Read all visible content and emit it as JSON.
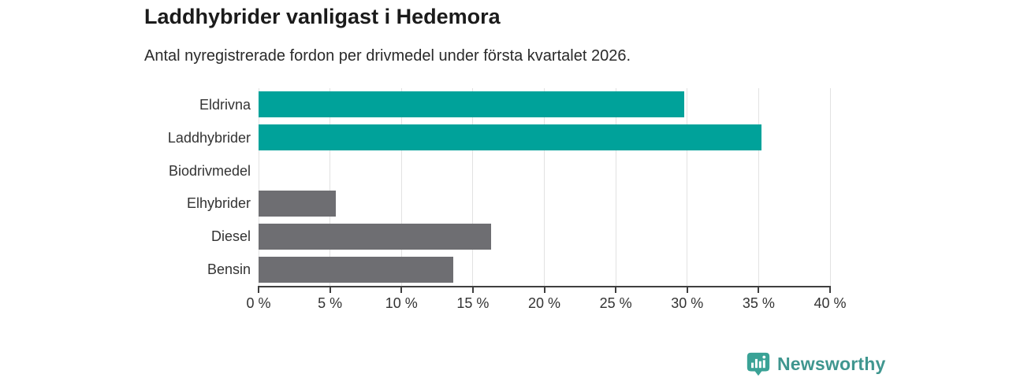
{
  "header": {
    "title": "Laddhybrider vanligast i Hedemora",
    "subtitle": "Antal nyregistrerade fordon per drivmedel under första kvartalet 2026."
  },
  "chart_data": {
    "type": "bar",
    "orientation": "horizontal",
    "title": "Laddhybrider vanligast i Hedemora",
    "subtitle": "Antal nyregistrerade fordon per drivmedel under första kvartalet 2026.",
    "categories": [
      "Eldrivna",
      "Laddhybrider",
      "Biodrivmedel",
      "Elhybrider",
      "Diesel",
      "Bensin"
    ],
    "values": [
      29.8,
      35.2,
      0,
      5.4,
      16.3,
      13.6
    ],
    "unit": "%",
    "xlabel": "",
    "ylabel": "",
    "xlim": [
      0,
      40
    ],
    "x_tick_values": [
      0,
      5,
      10,
      15,
      20,
      25,
      30,
      35,
      40
    ],
    "x_tick_labels": [
      "0 %",
      "5 %",
      "10 %",
      "15 %",
      "20 %",
      "25 %",
      "30 %",
      "35 %",
      "40 %"
    ],
    "grid": true,
    "legend": false,
    "highlight_color": "#00a29a",
    "default_color": "#6e6e72",
    "bar_colors": [
      "#00a29a",
      "#00a29a",
      "#6e6e72",
      "#6e6e72",
      "#6e6e72",
      "#6e6e72"
    ],
    "gridline_color": "#e2e2e2",
    "axis_color": "#3f3f3f"
  },
  "footer": {
    "brand": "Newsworthy",
    "brand_color": "#3f968f",
    "icon": "newsworthy-pin-barchart-icon",
    "icon_color": "#3aa296"
  }
}
